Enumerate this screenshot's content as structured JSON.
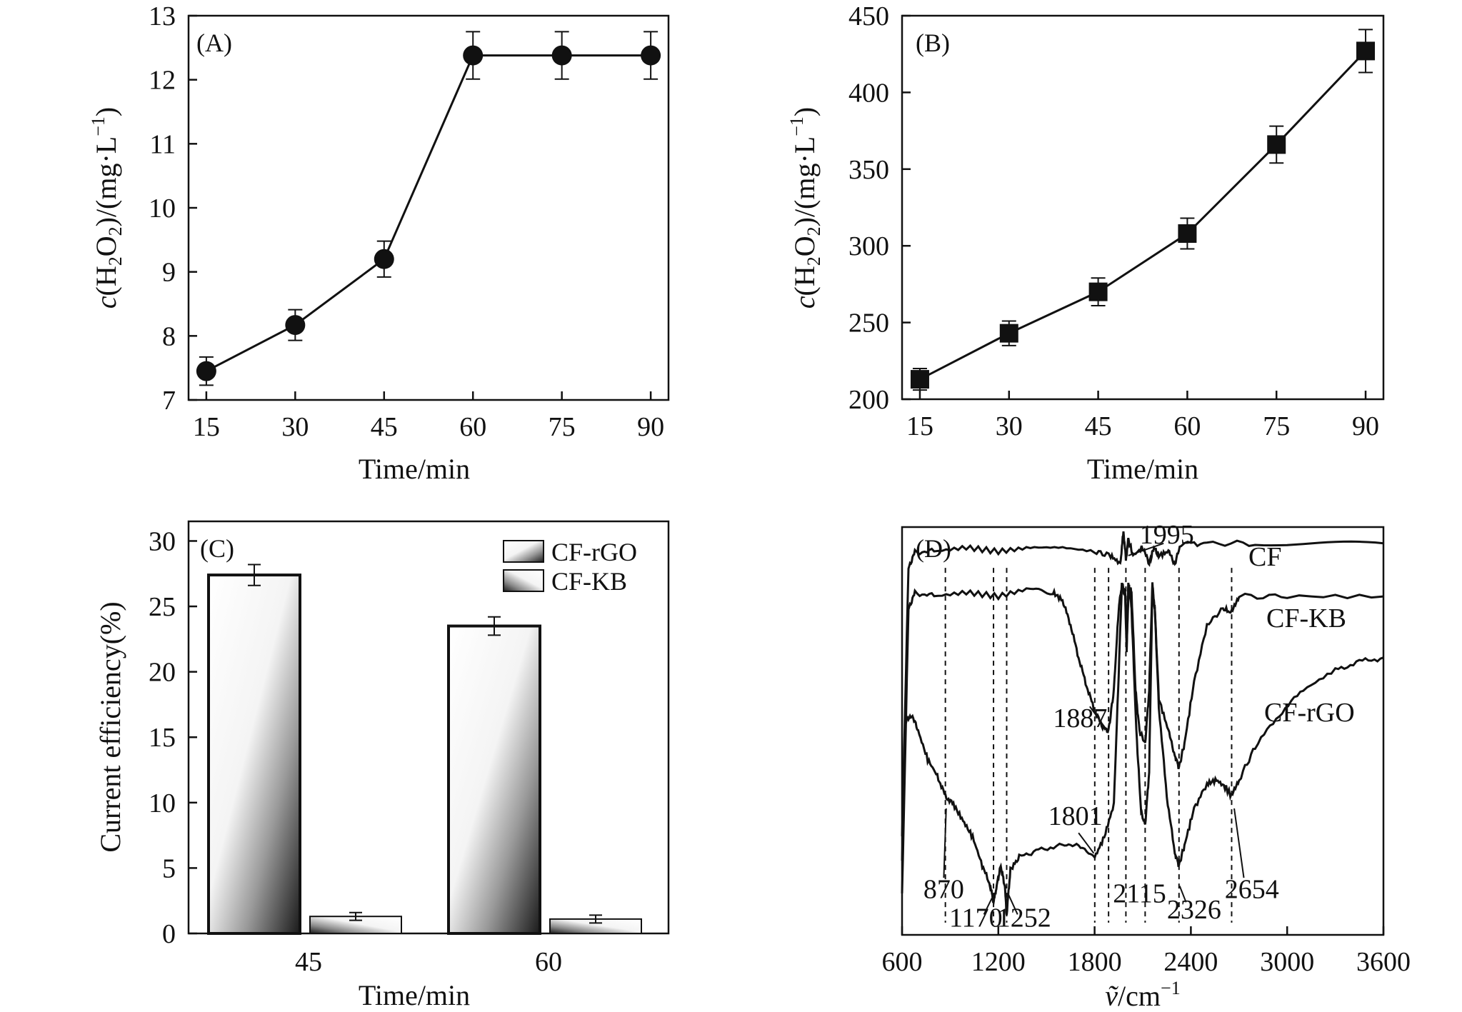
{
  "figure": "Four-panel figure (A)-(D)",
  "chart_data": [
    {
      "id": "A",
      "panel_label": "(A)",
      "type": "line",
      "x": [
        15,
        30,
        45,
        60,
        75,
        90
      ],
      "y": [
        7.45,
        8.17,
        9.2,
        12.38,
        12.38,
        12.38
      ],
      "yerr": [
        0.22,
        0.24,
        0.28,
        0.37,
        0.37,
        0.37
      ],
      "marker": "circle",
      "xlabel": "Time/min",
      "ylabel_parts": [
        "c",
        "(H",
        "2",
        "O",
        "2",
        ")/(mg·L",
        "−1",
        ")"
      ],
      "xlim": [
        12,
        93
      ],
      "ylim": [
        7,
        13
      ],
      "xticks": [
        15,
        30,
        45,
        60,
        75,
        90
      ],
      "yticks": [
        7,
        8,
        9,
        10,
        11,
        12,
        13
      ]
    },
    {
      "id": "B",
      "panel_label": "(B)",
      "type": "line",
      "x": [
        15,
        30,
        45,
        60,
        75,
        90
      ],
      "y": [
        213,
        243,
        270,
        308,
        366,
        427
      ],
      "yerr": [
        7,
        8,
        9,
        10,
        12,
        14
      ],
      "marker": "square",
      "xlabel": "Time/min",
      "ylabel_parts": [
        "c",
        "(H",
        "2",
        "O",
        "2",
        ")/(mg·L",
        "−1",
        ")"
      ],
      "xlim": [
        12,
        93
      ],
      "ylim": [
        200,
        450
      ],
      "xticks": [
        15,
        30,
        45,
        60,
        75,
        90
      ],
      "yticks": [
        200,
        250,
        300,
        350,
        400,
        450
      ]
    },
    {
      "id": "C",
      "panel_label": "(C)",
      "type": "bar",
      "categories": [
        "45",
        "60"
      ],
      "series": [
        {
          "name": "CF-rGO",
          "values": [
            27.4,
            23.5
          ],
          "err": [
            0.8,
            0.7
          ]
        },
        {
          "name": "CF-KB",
          "values": [
            1.3,
            1.1
          ],
          "err": [
            0.3,
            0.3
          ]
        }
      ],
      "xlabel": "Time/min",
      "ylabel": "Current efficiency(%)",
      "ylim": [
        0,
        31.5
      ],
      "yticks": [
        0,
        5,
        10,
        15,
        20,
        25,
        30
      ],
      "legend_position": "top-right"
    },
    {
      "id": "D",
      "panel_label": "(D)",
      "type": "line",
      "subtype": "FTIR spectra (stacked, no y-axis)",
      "xlabel_parts": [
        "ṽ",
        "/cm",
        "−1"
      ],
      "xlim": [
        600,
        3600
      ],
      "xticks": [
        600,
        1200,
        1800,
        2400,
        3000,
        3600
      ],
      "series": [
        {
          "name": "CF",
          "points": [
            [
              600,
              0.24
            ],
            [
              640,
              0.9
            ],
            [
              680,
              0.94
            ],
            [
              800,
              0.94
            ],
            [
              1000,
              0.95
            ],
            [
              1200,
              0.94
            ],
            [
              1400,
              0.95
            ],
            [
              1600,
              0.95
            ],
            [
              1800,
              0.94
            ],
            [
              1900,
              0.93
            ],
            [
              1960,
              0.91
            ],
            [
              1980,
              0.99
            ],
            [
              1995,
              0.92
            ],
            [
              2010,
              0.97
            ],
            [
              2040,
              0.93
            ],
            [
              2100,
              0.95
            ],
            [
              2140,
              0.91
            ],
            [
              2170,
              0.95
            ],
            [
              2200,
              0.93
            ],
            [
              2260,
              0.94
            ],
            [
              2300,
              0.91
            ],
            [
              2340,
              0.96
            ],
            [
              2500,
              0.96
            ],
            [
              2800,
              0.96
            ],
            [
              3200,
              0.96
            ],
            [
              3600,
              0.96
            ]
          ]
        },
        {
          "name": "CF-KB",
          "points": [
            [
              600,
              0.1
            ],
            [
              640,
              0.8
            ],
            [
              680,
              0.84
            ],
            [
              800,
              0.83
            ],
            [
              1000,
              0.84
            ],
            [
              1200,
              0.83
            ],
            [
              1400,
              0.85
            ],
            [
              1540,
              0.84
            ],
            [
              1600,
              0.82
            ],
            [
              1650,
              0.76
            ],
            [
              1700,
              0.68
            ],
            [
              1750,
              0.61
            ],
            [
              1800,
              0.55
            ],
            [
              1850,
              0.51
            ],
            [
              1887,
              0.5
            ],
            [
              1920,
              0.6
            ],
            [
              1950,
              0.8
            ],
            [
              1970,
              0.86
            ],
            [
              1990,
              0.83
            ],
            [
              2000,
              0.7
            ],
            [
              2010,
              0.86
            ],
            [
              2030,
              0.84
            ],
            [
              2055,
              0.6
            ],
            [
              2080,
              0.5
            ],
            [
              2115,
              0.47
            ],
            [
              2140,
              0.6
            ],
            [
              2160,
              0.86
            ],
            [
              2175,
              0.8
            ],
            [
              2200,
              0.58
            ],
            [
              2260,
              0.5
            ],
            [
              2300,
              0.44
            ],
            [
              2326,
              0.41
            ],
            [
              2360,
              0.47
            ],
            [
              2420,
              0.62
            ],
            [
              2500,
              0.76
            ],
            [
              2600,
              0.8
            ],
            [
              2654,
              0.79
            ],
            [
              2700,
              0.83
            ],
            [
              3000,
              0.83
            ],
            [
              3600,
              0.83
            ]
          ]
        },
        {
          "name": "CF-rGO",
          "points": [
            [
              600,
              0.18
            ],
            [
              620,
              0.52
            ],
            [
              660,
              0.54
            ],
            [
              700,
              0.5
            ],
            [
              760,
              0.43
            ],
            [
              820,
              0.39
            ],
            [
              870,
              0.34
            ],
            [
              920,
              0.32
            ],
            [
              980,
              0.28
            ],
            [
              1040,
              0.24
            ],
            [
              1100,
              0.17
            ],
            [
              1150,
              0.12
            ],
            [
              1170,
              0.08
            ],
            [
              1190,
              0.12
            ],
            [
              1215,
              0.17
            ],
            [
              1240,
              0.12
            ],
            [
              1252,
              0.05
            ],
            [
              1275,
              0.16
            ],
            [
              1330,
              0.19
            ],
            [
              1450,
              0.21
            ],
            [
              1600,
              0.22
            ],
            [
              1700,
              0.22
            ],
            [
              1801,
              0.19
            ],
            [
              1860,
              0.24
            ],
            [
              1920,
              0.32
            ],
            [
              1950,
              0.64
            ],
            [
              1970,
              0.86
            ],
            [
              1990,
              0.84
            ],
            [
              2000,
              0.72
            ],
            [
              2015,
              0.86
            ],
            [
              2030,
              0.8
            ],
            [
              2060,
              0.5
            ],
            [
              2090,
              0.3
            ],
            [
              2115,
              0.27
            ],
            [
              2140,
              0.4
            ],
            [
              2160,
              0.85
            ],
            [
              2175,
              0.8
            ],
            [
              2200,
              0.56
            ],
            [
              2250,
              0.34
            ],
            [
              2300,
              0.2
            ],
            [
              2326,
              0.17
            ],
            [
              2360,
              0.22
            ],
            [
              2420,
              0.31
            ],
            [
              2500,
              0.37
            ],
            [
              2560,
              0.38
            ],
            [
              2620,
              0.36
            ],
            [
              2654,
              0.34
            ],
            [
              2700,
              0.38
            ],
            [
              2800,
              0.46
            ],
            [
              2950,
              0.54
            ],
            [
              3100,
              0.6
            ],
            [
              3300,
              0.65
            ],
            [
              3450,
              0.67
            ],
            [
              3600,
              0.68
            ]
          ]
        }
      ],
      "curve_labels": [
        "CF",
        "CF-KB",
        "CF-rGO"
      ],
      "peaks": [
        {
          "label": "870",
          "x": 870
        },
        {
          "label": "1170",
          "x": 1170
        },
        {
          "label": "1252",
          "x": 1252
        },
        {
          "label": "1801",
          "x": 1801
        },
        {
          "label": "1887",
          "x": 1887
        },
        {
          "label": "1995",
          "x": 1995
        },
        {
          "label": "2115",
          "x": 2115
        },
        {
          "label": "2326",
          "x": 2326
        },
        {
          "label": "2654",
          "x": 2654
        }
      ]
    }
  ]
}
